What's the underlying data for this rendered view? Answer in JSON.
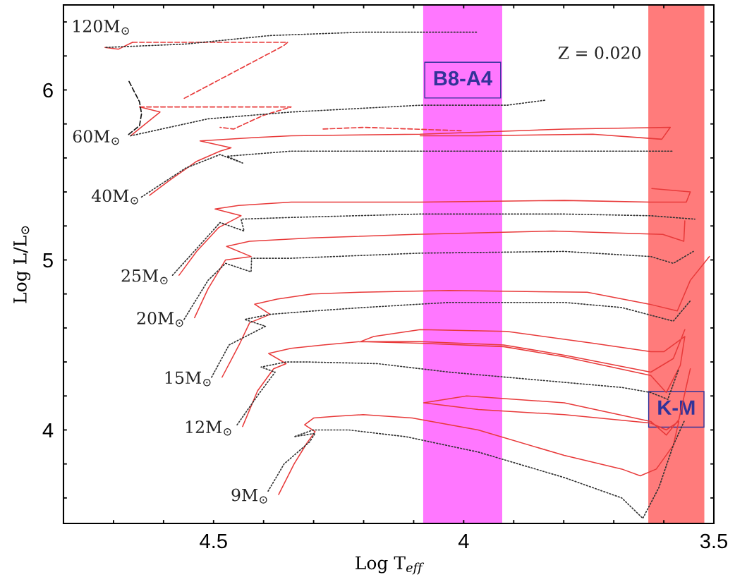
{
  "chart_data": {
    "type": "line",
    "xlabel": "Log T$_{eff}$",
    "ylabel": "Log L/L$_{⊙}$",
    "xlim": [
      4.8,
      3.5
    ],
    "ylim": [
      3.45,
      6.5
    ],
    "xticks": [
      {
        "value": 4.7,
        "label": null
      },
      {
        "value": 4.6,
        "label": null
      },
      4.5,
      {
        "value": 4.4,
        "label": null
      },
      {
        "value": 4.3,
        "label": null
      },
      {
        "value": 4.2,
        "label": null
      },
      {
        "value": 4.1,
        "label": null
      },
      4,
      {
        "value": 3.9,
        "label": null
      },
      {
        "value": 3.8,
        "label": null
      },
      {
        "value": 3.7,
        "label": null
      },
      {
        "value": 3.6,
        "label": null
      },
      3.5
    ],
    "yticks": [
      {
        "value": 3.6,
        "label": null
      },
      {
        "value": 3.8,
        "label": null
      },
      4,
      {
        "value": 4.2,
        "label": null
      },
      {
        "value": 4.4,
        "label": null
      },
      {
        "value": 4.6,
        "label": null
      },
      {
        "value": 4.8,
        "label": null
      },
      5,
      {
        "value": 5.2,
        "label": null
      },
      {
        "value": 5.4,
        "label": null
      },
      {
        "value": 5.6,
        "label": null
      },
      {
        "value": 5.8,
        "label": null
      },
      6,
      {
        "value": 6.2,
        "label": null
      },
      {
        "value": 6.4,
        "label": null
      }
    ],
    "grid": false,
    "legend": false,
    "marker": "none",
    "series": [
      {
        "name": "9M$_{⊙}$",
        "color": "#e83a3a",
        "line_style": "solid",
        "x": [
          4.37,
          4.339,
          4.314,
          4.297,
          4.318,
          4.3,
          4.259,
          4.201,
          4.103,
          3.971,
          3.799,
          3.684,
          3.647,
          3.615,
          3.581,
          3.57,
          3.595,
          3.626,
          3.799,
          3.971,
          4.08,
          3.994,
          3.799,
          3.626,
          3.595,
          3.57,
          3.547
        ],
        "values": [
          3.62,
          3.8,
          3.92,
          3.99,
          4.03,
          4.07,
          4.08,
          4.09,
          4.07,
          4.0,
          3.85,
          3.77,
          3.73,
          3.77,
          3.91,
          4.05,
          4.0,
          4.04,
          4.09,
          4.12,
          4.16,
          4.2,
          4.16,
          4.05,
          3.97,
          4.06,
          4.36
        ]
      },
      {
        "color": "#333333",
        "line_style": "dotted",
        "x": [
          4.391,
          4.359,
          4.308,
          4.297,
          4.339,
          4.301,
          4.23,
          4.115,
          3.971,
          3.799,
          3.684,
          3.642,
          3.61,
          3.581,
          3.558
        ],
        "values": [
          3.64,
          3.8,
          3.93,
          3.98,
          3.96,
          4.0,
          4.0,
          3.96,
          3.87,
          3.72,
          3.6,
          3.48,
          3.66,
          3.91,
          4.06
        ]
      },
      {
        "name": "12M$_{⊙}$",
        "color": "#e83a3a",
        "line_style": "solid",
        "x": [
          4.442,
          4.412,
          4.38,
          4.355,
          4.39,
          4.345,
          4.281,
          4.206,
          4.087,
          3.92,
          3.799,
          3.626,
          3.595,
          3.567,
          3.558,
          3.6,
          3.626,
          3.742,
          3.914,
          4.087,
          4.18,
          4.206,
          4.087,
          3.92,
          3.799,
          3.626,
          3.581,
          3.558
        ],
        "values": [
          4.02,
          4.23,
          4.36,
          4.39,
          4.45,
          4.48,
          4.5,
          4.52,
          4.51,
          4.49,
          4.43,
          4.32,
          4.22,
          4.38,
          4.55,
          4.46,
          4.46,
          4.51,
          4.58,
          4.59,
          4.55,
          4.52,
          4.52,
          4.5,
          4.44,
          4.34,
          4.42,
          4.59
        ]
      },
      {
        "color": "#333333",
        "line_style": "dotted",
        "x": [
          4.453,
          4.41,
          4.377,
          4.405,
          4.355,
          4.315,
          4.172,
          4.029,
          3.799,
          3.684,
          3.626,
          3.592,
          3.57
        ],
        "values": [
          4.03,
          4.21,
          4.34,
          4.37,
          4.4,
          4.4,
          4.39,
          4.34,
          4.28,
          4.25,
          4.22,
          4.18,
          4.36
        ]
      },
      {
        "name": "15M$_{⊙}$",
        "color": "#e83a3a",
        "line_style": "solid",
        "x": [
          4.483,
          4.449,
          4.428,
          4.387,
          4.418,
          4.373,
          4.304,
          4.208,
          4.029,
          3.753,
          3.629,
          3.573,
          3.547,
          3.509
        ],
        "values": [
          4.31,
          4.5,
          4.63,
          4.68,
          4.74,
          4.77,
          4.8,
          4.81,
          4.82,
          4.81,
          4.74,
          4.7,
          4.88,
          5.02
        ]
      },
      {
        "color": "#333333",
        "line_style": "dotted",
        "x": [
          4.504,
          4.469,
          4.396,
          4.438,
          4.387,
          4.3,
          4.201,
          4.029,
          3.799,
          3.684,
          3.581,
          3.547
        ],
        "values": [
          4.31,
          4.5,
          4.61,
          4.65,
          4.68,
          4.7,
          4.72,
          4.75,
          4.75,
          4.72,
          4.64,
          4.76
        ]
      },
      {
        "name": "20M$_{⊙}$",
        "color": "#e83a3a",
        "line_style": "solid",
        "x": [
          4.538,
          4.511,
          4.476,
          4.425,
          4.474,
          4.428,
          4.304,
          4.098,
          3.822,
          3.602,
          3.56,
          3.558
        ],
        "values": [
          4.66,
          4.83,
          5.0,
          5.02,
          5.08,
          5.11,
          5.13,
          5.15,
          5.17,
          5.15,
          5.11,
          5.23
        ]
      },
      {
        "color": "#333333",
        "line_style": "dotted",
        "x": [
          4.559,
          4.511,
          4.476,
          4.425,
          4.424,
          4.345,
          4.087,
          3.799,
          3.626,
          3.581,
          3.541
        ],
        "values": [
          4.65,
          4.88,
          4.98,
          4.93,
          5.01,
          5.01,
          5.04,
          5.05,
          5.02,
          4.98,
          5.05
        ]
      },
      {
        "name": "25M$_{⊙}$",
        "color": "#e83a3a",
        "line_style": "solid",
        "x": [
          4.569,
          4.534,
          4.49,
          4.445,
          4.497,
          4.45,
          4.345,
          4.087,
          3.799,
          3.626,
          3.555,
          3.547,
          3.624
        ],
        "values": [
          4.91,
          5.05,
          5.19,
          5.26,
          5.3,
          5.32,
          5.34,
          5.34,
          5.35,
          5.34,
          5.34,
          5.4,
          5.42
        ]
      },
      {
        "color": "#333333",
        "line_style": "dotted",
        "x": [
          4.582,
          4.542,
          4.487,
          4.439,
          4.445,
          4.345,
          4.087,
          3.799,
          3.626,
          3.538
        ],
        "values": [
          4.91,
          5.04,
          5.22,
          5.17,
          5.24,
          5.25,
          5.27,
          5.27,
          5.26,
          5.24
        ]
      },
      {
        "name": "40M$_{⊙}$",
        "color": "#e83a3a",
        "line_style": "solid",
        "x": [
          4.628,
          4.587,
          4.534,
          4.487,
          4.465,
          4.527,
          4.418,
          4.345,
          4.087,
          3.799,
          3.587,
          3.604,
          3.742,
          3.971,
          4.087
        ],
        "values": [
          5.38,
          5.47,
          5.58,
          5.64,
          5.66,
          5.7,
          5.72,
          5.73,
          5.74,
          5.77,
          5.78,
          5.71,
          5.74,
          5.73,
          5.73
        ]
      },
      {
        "color": "#e83a3a",
        "line_style": "dashed",
        "x": [
          4.281,
          4.2,
          4.005
        ],
        "values": [
          5.77,
          5.78,
          5.76
        ]
      },
      {
        "color": "#333333",
        "line_style": "dotted",
        "x": [
          4.644,
          4.556,
          4.487,
          4.442,
          4.473,
          4.345,
          4.087,
          3.799,
          3.581
        ],
        "values": [
          5.37,
          5.54,
          5.62,
          5.57,
          5.61,
          5.64,
          5.64,
          5.64,
          5.64
        ]
      },
      {
        "name": "60M$_{⊙}$",
        "color": "#e83a3a",
        "line_style": "solid",
        "x": [
          4.666,
          4.607,
          4.648
        ],
        "values": [
          5.73,
          5.87,
          5.9
        ]
      },
      {
        "color": "#e83a3a",
        "line_style": "dashed",
        "x": [
          4.648,
          4.345,
          4.401,
          4.46,
          4.487
        ],
        "values": [
          5.9,
          5.9,
          5.85,
          5.77,
          5.78
        ]
      },
      {
        "color": "#111111",
        "line_style": "dashed",
        "x": [
          4.669,
          4.648,
          4.644,
          4.648,
          4.673
        ],
        "values": [
          6.05,
          5.93,
          5.86,
          5.79,
          5.73
        ]
      },
      {
        "color": "#333333",
        "line_style": "dotted",
        "x": [
          4.666,
          4.511,
          4.345,
          4.087,
          3.914,
          3.836
        ],
        "values": [
          5.73,
          5.83,
          5.87,
          5.91,
          5.91,
          5.94
        ]
      },
      {
        "name": "120M$_{⊙}$",
        "color": "#e83a3a",
        "line_style": "solid",
        "x": [
          4.717,
          4.69,
          4.662
        ],
        "values": [
          6.25,
          6.24,
          6.28
        ]
      },
      {
        "color": "#e83a3a",
        "line_style": "dashed",
        "x": [
          4.662,
          4.352,
          4.36,
          4.559
        ],
        "values": [
          6.28,
          6.28,
          6.26,
          5.95
        ]
      },
      {
        "color": "#333333",
        "line_style": "dotted",
        "x": [
          4.715,
          4.556,
          4.387,
          4.201,
          3.971
        ],
        "values": [
          6.25,
          6.27,
          6.32,
          6.34,
          6.34
        ]
      }
    ],
    "bands": [
      {
        "axis": "x",
        "from": 4.081,
        "to": 3.923,
        "color": "#ff77ff",
        "label": "B8-A4"
      },
      {
        "axis": "x",
        "from": 3.631,
        "to": 3.519,
        "color": "#ff7b7b",
        "label": "K-M"
      }
    ],
    "annotations": [
      "Z = 0.020"
    ]
  }
}
